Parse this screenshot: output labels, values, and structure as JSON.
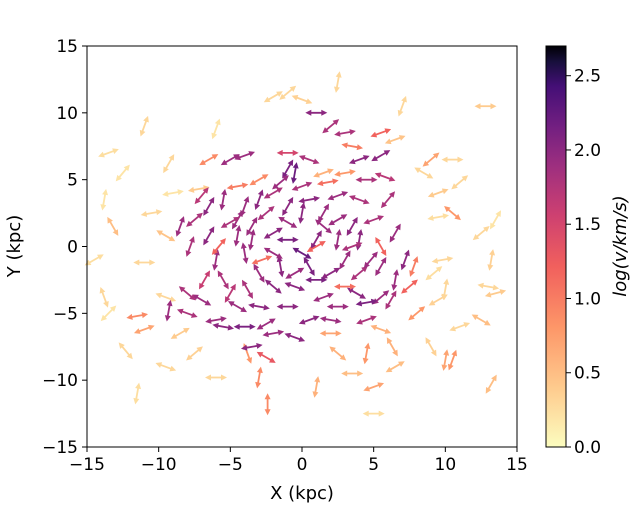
{
  "chart_data": {
    "type": "quiver",
    "title": "",
    "xlabel": "X (kpc)",
    "ylabel": "Y (kpc)",
    "xlim": [
      -15,
      15
    ],
    "ylim": [
      -15,
      15
    ],
    "xticks": [
      -15,
      -10,
      -5,
      0,
      5,
      10,
      15
    ],
    "yticks": [
      -15,
      -10,
      -5,
      0,
      5,
      10,
      15
    ],
    "xtick_labels": [
      "−15",
      "−10",
      "−5",
      "0",
      "5",
      "10",
      "15"
    ],
    "ytick_labels": [
      "−15",
      "−10",
      "−5",
      "0",
      "5",
      "10",
      "15"
    ],
    "grid": false,
    "colormap": "magma_r",
    "colorbar": {
      "label": "log(v/km/s)",
      "range": [
        0.0,
        2.7
      ],
      "ticks": [
        0.0,
        0.5,
        1.0,
        1.5,
        2.0,
        2.5
      ],
      "tick_labels": [
        "0.0",
        "0.5",
        "1.0",
        "1.5",
        "2.0",
        "2.5"
      ]
    },
    "arrow_pattern": "double-headed (symmetric) vector arrows",
    "arrows": [
      {
        "x": -13.5,
        "y": 7.0,
        "angle": 20,
        "v": 0.25
      },
      {
        "x": -11.0,
        "y": 9.0,
        "angle": 70,
        "v": 0.3
      },
      {
        "x": -12.5,
        "y": 5.5,
        "angle": 50,
        "v": 0.2
      },
      {
        "x": -13.8,
        "y": 3.5,
        "angle": 80,
        "v": 0.2
      },
      {
        "x": -13.2,
        "y": 1.5,
        "angle": -60,
        "v": 0.5
      },
      {
        "x": -14.5,
        "y": -1.0,
        "angle": 30,
        "v": 0.25
      },
      {
        "x": -13.8,
        "y": -3.8,
        "angle": -70,
        "v": 0.3
      },
      {
        "x": -13.5,
        "y": -5.0,
        "angle": 45,
        "v": 0.2
      },
      {
        "x": -11.5,
        "y": -5.2,
        "angle": 10,
        "v": 0.9
      },
      {
        "x": -11.0,
        "y": -6.2,
        "angle": 20,
        "v": 0.7
      },
      {
        "x": -12.3,
        "y": -7.8,
        "angle": -50,
        "v": 0.3
      },
      {
        "x": -11.5,
        "y": -11.0,
        "angle": 80,
        "v": 0.25
      },
      {
        "x": -9.5,
        "y": -9.0,
        "angle": -20,
        "v": 0.3
      },
      {
        "x": -7.5,
        "y": -8.0,
        "angle": 40,
        "v": 0.35
      },
      {
        "x": -6.0,
        "y": -9.8,
        "angle": 0,
        "v": 0.3
      },
      {
        "x": -3.8,
        "y": -8.0,
        "angle": -70,
        "v": 0.8
      },
      {
        "x": -3.0,
        "y": -9.8,
        "angle": 80,
        "v": 0.9
      },
      {
        "x": -2.4,
        "y": -11.8,
        "angle": 90,
        "v": 0.9
      },
      {
        "x": 1.0,
        "y": -10.5,
        "angle": 80,
        "v": 0.6
      },
      {
        "x": 2.5,
        "y": -8.0,
        "angle": -40,
        "v": 0.6
      },
      {
        "x": 3.5,
        "y": -9.5,
        "angle": 0,
        "v": 0.5
      },
      {
        "x": 5.0,
        "y": -10.5,
        "angle": 20,
        "v": 0.7
      },
      {
        "x": 5.0,
        "y": -12.5,
        "angle": 0,
        "v": 0.25
      },
      {
        "x": 4.5,
        "y": -8.0,
        "angle": 80,
        "v": 0.8
      },
      {
        "x": 6.3,
        "y": -7.5,
        "angle": -60,
        "v": 0.6
      },
      {
        "x": 6.5,
        "y": -9.0,
        "angle": 30,
        "v": 0.5
      },
      {
        "x": 9.0,
        "y": -7.5,
        "angle": -60,
        "v": 0.35
      },
      {
        "x": 10.0,
        "y": -8.5,
        "angle": 80,
        "v": 0.7
      },
      {
        "x": 10.5,
        "y": -8.5,
        "angle": 70,
        "v": 0.8
      },
      {
        "x": 13.2,
        "y": -10.3,
        "angle": 60,
        "v": 0.5
      },
      {
        "x": 11.0,
        "y": -6.0,
        "angle": 20,
        "v": 0.3
      },
      {
        "x": 12.5,
        "y": -5.5,
        "angle": -30,
        "v": 0.5
      },
      {
        "x": 13.5,
        "y": -3.5,
        "angle": 15,
        "v": 0.4
      },
      {
        "x": 13.0,
        "y": -3.0,
        "angle": -10,
        "v": 0.3
      },
      {
        "x": 9.5,
        "y": -4.0,
        "angle": 30,
        "v": 0.35
      },
      {
        "x": 10.0,
        "y": -3.2,
        "angle": 80,
        "v": 0.3
      },
      {
        "x": 9.2,
        "y": -2.0,
        "angle": 40,
        "v": 0.25
      },
      {
        "x": 9.8,
        "y": -1.0,
        "angle": 10,
        "v": 0.3
      },
      {
        "x": 10.5,
        "y": 2.5,
        "angle": -40,
        "v": 0.8
      },
      {
        "x": 9.5,
        "y": 2.2,
        "angle": 10,
        "v": 0.25
      },
      {
        "x": 12.5,
        "y": 1.0,
        "angle": 40,
        "v": 0.3
      },
      {
        "x": 13.5,
        "y": 2.0,
        "angle": 60,
        "v": 0.2
      },
      {
        "x": 13.2,
        "y": -1.0,
        "angle": 80,
        "v": 0.35
      },
      {
        "x": 12.8,
        "y": 10.5,
        "angle": 0,
        "v": 0.4
      },
      {
        "x": 10.5,
        "y": 6.5,
        "angle": 0,
        "v": 0.3
      },
      {
        "x": 11.0,
        "y": 4.8,
        "angle": 40,
        "v": 0.3
      },
      {
        "x": 8.5,
        "y": 5.5,
        "angle": -30,
        "v": 0.3
      },
      {
        "x": 9.5,
        "y": 4.0,
        "angle": 20,
        "v": 0.4
      },
      {
        "x": 7.0,
        "y": 10.5,
        "angle": 70,
        "v": 0.3
      },
      {
        "x": 6.5,
        "y": 8.0,
        "angle": 20,
        "v": 0.45
      },
      {
        "x": 2.5,
        "y": 12.3,
        "angle": 80,
        "v": 0.3
      },
      {
        "x": -2.0,
        "y": 11.2,
        "angle": 30,
        "v": 0.3
      },
      {
        "x": -1.0,
        "y": 11.5,
        "angle": 40,
        "v": 0.3
      },
      {
        "x": 0.0,
        "y": 11.0,
        "angle": -20,
        "v": 0.35
      },
      {
        "x": -6.0,
        "y": 8.8,
        "angle": 70,
        "v": 0.2
      },
      {
        "x": -9.3,
        "y": 6.2,
        "angle": 60,
        "v": 0.3
      },
      {
        "x": -9.0,
        "y": 4.0,
        "angle": 10,
        "v": 0.2
      },
      {
        "x": -10.5,
        "y": 2.5,
        "angle": 10,
        "v": 0.3
      },
      {
        "x": -9.5,
        "y": 0.8,
        "angle": -30,
        "v": 0.45
      },
      {
        "x": -11.0,
        "y": -1.2,
        "angle": 0,
        "v": 0.3
      },
      {
        "x": -9.5,
        "y": -3.8,
        "angle": -20,
        "v": 0.3
      },
      {
        "x": -8.5,
        "y": -6.5,
        "angle": 30,
        "v": 0.4
      },
      {
        "x": -6.5,
        "y": 6.5,
        "angle": 30,
        "v": 0.9
      },
      {
        "x": -7.2,
        "y": 4.3,
        "angle": 10,
        "v": 0.4
      },
      {
        "x": -4.5,
        "y": 4.5,
        "angle": 10,
        "v": 1.0
      },
      {
        "x": -3.0,
        "y": 5.0,
        "angle": 30,
        "v": 0.9
      },
      {
        "x": 1.5,
        "y": 5.5,
        "angle": 20,
        "v": 0.6
      },
      {
        "x": 3.0,
        "y": 5.5,
        "angle": 10,
        "v": 0.8
      },
      {
        "x": 3.5,
        "y": 7.5,
        "angle": -10,
        "v": 1.0
      },
      {
        "x": 5.5,
        "y": 8.5,
        "angle": 20,
        "v": 1.2
      },
      {
        "x": 9.0,
        "y": 6.5,
        "angle": 40,
        "v": 0.7
      },
      {
        "x": 8.0,
        "y": -5.0,
        "angle": 40,
        "v": 0.8
      },
      {
        "x": 5.5,
        "y": -6.2,
        "angle": -20,
        "v": 0.6
      },
      {
        "x": 2.0,
        "y": -6.5,
        "angle": 0,
        "v": 0.7
      },
      {
        "x": -5.0,
        "y": 6.5,
        "angle": 30,
        "v": 1.9
      },
      {
        "x": -4.0,
        "y": 6.8,
        "angle": 20,
        "v": 1.9
      },
      {
        "x": -1.0,
        "y": 5.8,
        "angle": 60,
        "v": 2.1
      },
      {
        "x": -0.5,
        "y": 5.5,
        "angle": 80,
        "v": 2.2
      },
      {
        "x": 0.5,
        "y": 6.5,
        "angle": -20,
        "v": 1.8
      },
      {
        "x": 2.0,
        "y": 9.0,
        "angle": 40,
        "v": 1.8
      },
      {
        "x": 3.0,
        "y": 8.5,
        "angle": 10,
        "v": 1.8
      },
      {
        "x": 1.0,
        "y": 10.0,
        "angle": 0,
        "v": 2.0
      },
      {
        "x": 4.0,
        "y": 6.5,
        "angle": 20,
        "v": 2.0
      },
      {
        "x": 4.5,
        "y": 5.0,
        "angle": 0,
        "v": 1.8
      },
      {
        "x": 5.8,
        "y": 5.2,
        "angle": -20,
        "v": 1.7
      },
      {
        "x": 5.5,
        "y": 6.8,
        "angle": 30,
        "v": 2.0
      },
      {
        "x": 6.0,
        "y": 3.5,
        "angle": 50,
        "v": 1.8
      },
      {
        "x": 5.0,
        "y": 2.0,
        "angle": 20,
        "v": 1.8
      },
      {
        "x": 6.5,
        "y": 1.0,
        "angle": 60,
        "v": 1.9
      },
      {
        "x": 7.2,
        "y": -1.0,
        "angle": 70,
        "v": 2.0
      },
      {
        "x": 6.5,
        "y": -2.5,
        "angle": 80,
        "v": 1.9
      },
      {
        "x": 5.5,
        "y": -3.8,
        "angle": 40,
        "v": 1.9
      },
      {
        "x": 4.5,
        "y": -4.2,
        "angle": 10,
        "v": 2.1
      },
      {
        "x": 3.8,
        "y": -3.5,
        "angle": -30,
        "v": 2.0
      },
      {
        "x": 2.5,
        "y": -4.5,
        "angle": 0,
        "v": 1.9
      },
      {
        "x": 0.5,
        "y": -5.5,
        "angle": 20,
        "v": 2.0
      },
      {
        "x": -0.5,
        "y": -6.8,
        "angle": -20,
        "v": 2.0
      },
      {
        "x": -2.0,
        "y": -6.5,
        "angle": 10,
        "v": 1.9
      },
      {
        "x": -4.0,
        "y": -6.0,
        "angle": 0,
        "v": 2.1
      },
      {
        "x": -5.5,
        "y": -6.0,
        "angle": -10,
        "v": 2.0
      },
      {
        "x": -3.5,
        "y": -7.5,
        "angle": 10,
        "v": 2.0
      },
      {
        "x": -7.0,
        "y": -4.0,
        "angle": -30,
        "v": 1.9
      },
      {
        "x": -8.0,
        "y": -3.5,
        "angle": -40,
        "v": 1.8
      },
      {
        "x": -9.3,
        "y": -4.8,
        "angle": 80,
        "v": 1.9
      },
      {
        "x": -8.5,
        "y": 1.5,
        "angle": 70,
        "v": 1.9
      },
      {
        "x": -7.5,
        "y": 2.0,
        "angle": 40,
        "v": 1.8
      },
      {
        "x": -6.5,
        "y": 3.0,
        "angle": 60,
        "v": 2.0
      },
      {
        "x": -5.5,
        "y": 3.5,
        "angle": 80,
        "v": 1.9
      },
      {
        "x": -4.5,
        "y": 2.0,
        "angle": 60,
        "v": 1.9
      },
      {
        "x": -3.0,
        "y": 3.5,
        "angle": 70,
        "v": 2.0
      },
      {
        "x": -2.0,
        "y": 4.0,
        "angle": 30,
        "v": 1.8
      },
      {
        "x": -1.0,
        "y": 3.0,
        "angle": 60,
        "v": 2.0
      },
      {
        "x": 0.5,
        "y": 3.5,
        "angle": 10,
        "v": 2.0
      },
      {
        "x": 1.5,
        "y": 2.5,
        "angle": 60,
        "v": 1.9
      },
      {
        "x": 2.5,
        "y": 2.0,
        "angle": 30,
        "v": 1.9
      },
      {
        "x": 3.5,
        "y": 1.5,
        "angle": 60,
        "v": 2.0
      },
      {
        "x": 4.0,
        "y": 0.5,
        "angle": 80,
        "v": 2.0
      },
      {
        "x": 3.0,
        "y": -1.0,
        "angle": 60,
        "v": 1.9
      },
      {
        "x": 2.0,
        "y": -2.0,
        "angle": 30,
        "v": 2.0
      },
      {
        "x": 1.0,
        "y": -2.5,
        "angle": 0,
        "v": 2.1
      },
      {
        "x": -0.5,
        "y": -3.0,
        "angle": -20,
        "v": 2.0
      },
      {
        "x": -2.0,
        "y": -3.0,
        "angle": -40,
        "v": 2.0
      },
      {
        "x": -3.0,
        "y": -2.0,
        "angle": -60,
        "v": 1.9
      },
      {
        "x": -4.0,
        "y": -0.5,
        "angle": -80,
        "v": 1.9
      },
      {
        "x": -4.5,
        "y": 0.8,
        "angle": 80,
        "v": 1.9
      },
      {
        "x": -3.5,
        "y": 1.5,
        "angle": 60,
        "v": 1.9
      },
      {
        "x": -2.0,
        "y": 1.0,
        "angle": 30,
        "v": 2.0
      },
      {
        "x": -1.0,
        "y": 0.5,
        "angle": 0,
        "v": 2.1
      },
      {
        "x": 0.0,
        "y": -0.5,
        "angle": -30,
        "v": 2.2
      },
      {
        "x": 1.0,
        "y": 0.5,
        "angle": 60,
        "v": 2.0
      },
      {
        "x": 0.5,
        "y": -1.5,
        "angle": -60,
        "v": 2.1
      },
      {
        "x": -1.5,
        "y": -1.5,
        "angle": -80,
        "v": 2.0
      },
      {
        "x": -6.0,
        "y": -1.0,
        "angle": 80,
        "v": 1.9
      },
      {
        "x": -5.5,
        "y": -2.5,
        "angle": -60,
        "v": 1.8
      },
      {
        "x": -6.5,
        "y": 0.8,
        "angle": 60,
        "v": 2.0
      },
      {
        "x": -7.8,
        "y": 0.0,
        "angle": 70,
        "v": 1.8
      },
      {
        "x": -4.5,
        "y": -4.5,
        "angle": -30,
        "v": 1.9
      },
      {
        "x": -3.0,
        "y": -4.5,
        "angle": -10,
        "v": 2.0
      },
      {
        "x": 5.5,
        "y": -1.5,
        "angle": 60,
        "v": 1.9
      },
      {
        "x": 4.0,
        "y": -2.0,
        "angle": 40,
        "v": 1.8
      },
      {
        "x": 2.5,
        "y": 3.8,
        "angle": 20,
        "v": 1.9
      },
      {
        "x": 4.0,
        "y": 3.5,
        "angle": -20,
        "v": 1.8
      },
      {
        "x": -1.0,
        "y": 1.8,
        "angle": -30,
        "v": 1.9
      },
      {
        "x": 1.5,
        "y": -3.8,
        "angle": 20,
        "v": 1.9
      },
      {
        "x": -3.5,
        "y": 0.5,
        "angle": 80,
        "v": 1.9
      },
      {
        "x": -5.0,
        "y": 1.8,
        "angle": 30,
        "v": 1.8
      },
      {
        "x": -5.0,
        "y": -3.5,
        "angle": 60,
        "v": 1.7
      },
      {
        "x": -2.5,
        "y": 2.5,
        "angle": 40,
        "v": 1.8
      },
      {
        "x": 3.5,
        "y": 0.0,
        "angle": 20,
        "v": 1.8
      },
      {
        "x": -2.5,
        "y": -5.8,
        "angle": 30,
        "v": 1.9
      },
      {
        "x": -1.0,
        "y": -4.5,
        "angle": 0,
        "v": 2.0
      },
      {
        "x": 1.5,
        "y": 1.5,
        "angle": -40,
        "v": 1.9
      },
      {
        "x": -7.0,
        "y": 3.8,
        "angle": 50,
        "v": 1.7
      },
      {
        "x": -6.0,
        "y": -5.5,
        "angle": 10,
        "v": 1.9
      },
      {
        "x": 0.0,
        "y": 2.5,
        "angle": 80,
        "v": 2.0
      },
      {
        "x": -4.0,
        "y": 3.0,
        "angle": 70,
        "v": 1.9
      },
      {
        "x": 2.5,
        "y": 0.5,
        "angle": 80,
        "v": 1.9
      },
      {
        "x": -1.5,
        "y": 4.8,
        "angle": 40,
        "v": 1.9
      },
      {
        "x": 6.2,
        "y": -4.0,
        "angle": 60,
        "v": 1.8
      },
      {
        "x": 4.5,
        "y": -5.5,
        "angle": 20,
        "v": 1.8
      },
      {
        "x": -8.0,
        "y": -5.0,
        "angle": -20,
        "v": 1.8
      },
      {
        "x": -6.8,
        "y": -2.5,
        "angle": 60,
        "v": 1.6
      },
      {
        "x": -0.5,
        "y": -2.0,
        "angle": 30,
        "v": 1.9
      },
      {
        "x": 2.0,
        "y": -5.5,
        "angle": -10,
        "v": 1.9
      },
      {
        "x": -3.8,
        "y": -3.2,
        "angle": -60,
        "v": 1.8
      },
      {
        "x": 0.0,
        "y": 4.5,
        "angle": 20,
        "v": 1.8
      },
      {
        "x": -2.0,
        "y": -0.5,
        "angle": -30,
        "v": 1.9
      },
      {
        "x": 4.8,
        "y": -1.0,
        "angle": 50,
        "v": 1.9
      },
      {
        "x": -1.0,
        "y": 7.0,
        "angle": 0,
        "v": 1.5
      },
      {
        "x": 7.5,
        "y": -3.0,
        "angle": 40,
        "v": 1.2
      },
      {
        "x": 7.8,
        "y": -1.5,
        "angle": 70,
        "v": 1.0
      },
      {
        "x": 5.5,
        "y": 0.0,
        "angle": -60,
        "v": 1.2
      },
      {
        "x": 1.0,
        "y": 0.0,
        "angle": 30,
        "v": 1.2
      },
      {
        "x": 3.0,
        "y": -3.0,
        "angle": 0,
        "v": 1.1
      },
      {
        "x": -5.8,
        "y": 0.0,
        "angle": 50,
        "v": 1.2
      },
      {
        "x": -2.8,
        "y": -1.0,
        "angle": 20,
        "v": 1.1
      },
      {
        "x": 1.8,
        "y": 4.8,
        "angle": 10,
        "v": 1.1
      },
      {
        "x": -2.5,
        "y": -8.3,
        "angle": -30,
        "v": 1.3
      }
    ]
  }
}
